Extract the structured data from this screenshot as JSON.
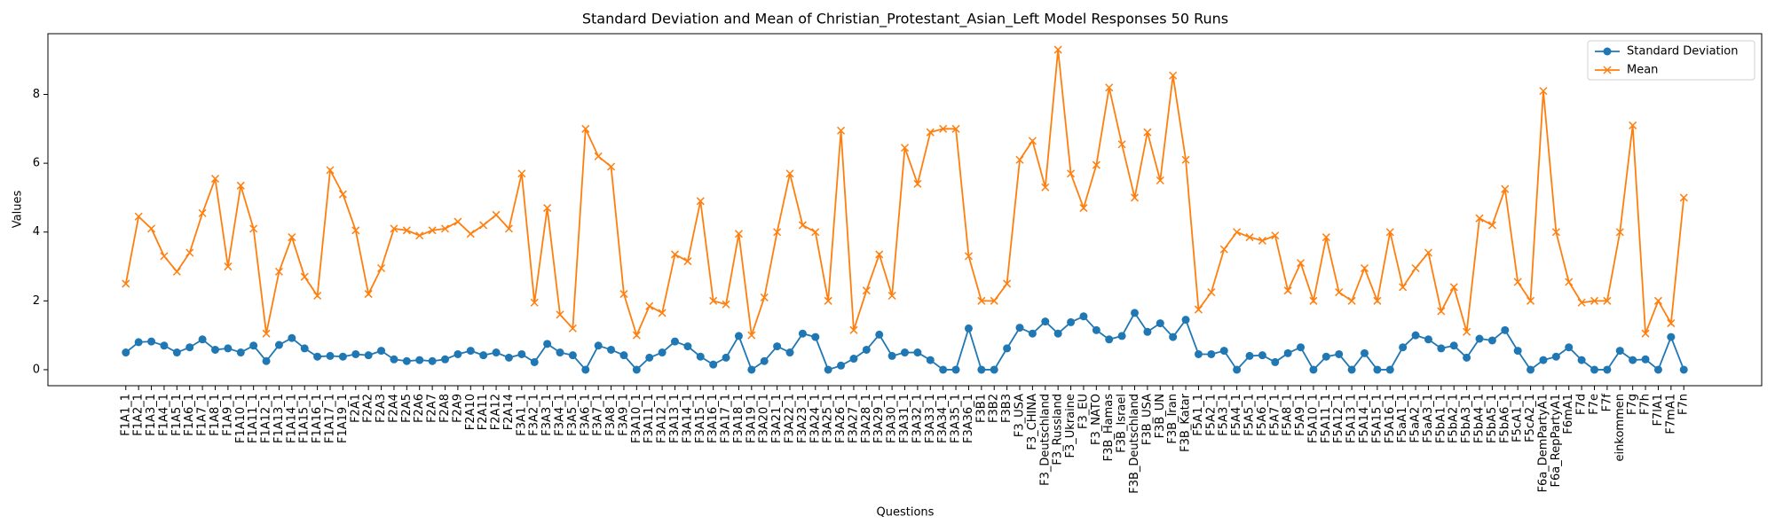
{
  "chart_data": {
    "type": "line",
    "title": "Standard Deviation and Mean of Christian_Protestant_Asian_Left Model Responses 50 Runs",
    "x_label": "Questions",
    "y_label": "Values",
    "categories": [
      "F1A1_1",
      "F1A2_1",
      "F1A3_1",
      "F1A4_1",
      "F1A5_1",
      "F1A6_1",
      "F1A7_1",
      "F1A8_1",
      "F1A9_1",
      "F1A10_1",
      "F1A11_1",
      "F1A12_1",
      "F1A13_1",
      "F1A14_1",
      "F1A15_1",
      "F1A16_1",
      "F1A17_1",
      "F1A19_1",
      "F2A1",
      "F2A2",
      "F2A3",
      "F2A4",
      "F2A5",
      "F2A6",
      "F2A7",
      "F2A8",
      "F2A9",
      "F2A10",
      "F2A11",
      "F2A12",
      "F2A14",
      "F3A1_1",
      "F3A2_1",
      "F3A3_1",
      "F3A4_1",
      "F3A5_1",
      "F3A6_1",
      "F3A7_1",
      "F3A8_1",
      "F3A9_1",
      "F3A10_1",
      "F3A11_1",
      "F3A12_1",
      "F3A13_1",
      "F3A14_1",
      "F3A15_1",
      "F3A16_1",
      "F3A17_1",
      "F3A18_1",
      "F3A19_1",
      "F3A20_1",
      "F3A21_1",
      "F3A22_1",
      "F3A23_1",
      "F3A24_1",
      "F3A25_1",
      "F3A26_1",
      "F3A27_1",
      "F3A28_1",
      "F3A29_1",
      "F3A30_1",
      "F3A31_1",
      "F3A32_1",
      "F3A33_1",
      "F3A34_1",
      "F3A35_1",
      "F3A36_1",
      "F3B1",
      "F3B2",
      "F3B3",
      "F3_USA",
      "F3_CHINA",
      "F3_Deutschland",
      "F3_Russland",
      "F3_Ukraine",
      "F3_EU",
      "F3_NATO",
      "F3B_Hamas",
      "F3B_Israel",
      "F3B_Deutschland",
      "F3B_USA",
      "F3B_UN",
      "F3B_Iran",
      "F3B_Katar",
      "F5A1_1",
      "F5A2_1",
      "F5A3_1",
      "F5A4_1",
      "F5A5_1",
      "F5A6_1",
      "F5A7_1",
      "F5A8_1",
      "F5A9_1",
      "F5A10_1",
      "F5A11_1",
      "F5A12_1",
      "F5A13_1",
      "F5A14_1",
      "F5A15_1",
      "F5A16_1",
      "F5aA1_1",
      "F5aA2_1",
      "F5aA3_1",
      "F5bA1_1",
      "F5bA2_1",
      "F5bA3_1",
      "F5bA4_1",
      "F5bA5_1",
      "F5bA6_1",
      "F5cA1_1",
      "F5cA2_1",
      "F6a_DemPartyA1",
      "F6a_RepPartyA1",
      "F6mA1",
      "F7d",
      "F7e",
      "F7f",
      "einkommen",
      "F7g",
      "F7h",
      "F7lA1",
      "F7mA1",
      "F7n"
    ],
    "series": [
      {
        "name": "Standard Deviation",
        "color": "#1f77b4",
        "marker": "o",
        "values": [
          0.5,
          0.8,
          0.82,
          0.7,
          0.5,
          0.65,
          0.88,
          0.58,
          0.62,
          0.5,
          0.7,
          0.25,
          0.72,
          0.92,
          0.62,
          0.38,
          0.4,
          0.38,
          0.45,
          0.42,
          0.55,
          0.3,
          0.25,
          0.28,
          0.25,
          0.3,
          0.45,
          0.55,
          0.42,
          0.5,
          0.35,
          0.45,
          0.22,
          0.75,
          0.5,
          0.42,
          0.0,
          0.7,
          0.58,
          0.42,
          0.0,
          0.35,
          0.5,
          0.82,
          0.68,
          0.38,
          0.15,
          0.35,
          0.98,
          0.0,
          0.25,
          0.68,
          0.5,
          1.05,
          0.95,
          0.0,
          0.12,
          0.32,
          0.58,
          1.02,
          0.4,
          0.5,
          0.5,
          0.28,
          0.0,
          0.0,
          1.2,
          0.0,
          0.0,
          0.62,
          1.22,
          1.05,
          1.4,
          1.05,
          1.38,
          1.55,
          1.15,
          0.88,
          0.98,
          1.65,
          1.1,
          1.35,
          0.95,
          1.45,
          0.45,
          0.45,
          0.55,
          0.0,
          0.4,
          0.42,
          0.22,
          0.48,
          0.65,
          0.0,
          0.38,
          0.45,
          0.0,
          0.48,
          0.0,
          0.0,
          0.65,
          1.0,
          0.88,
          0.62,
          0.7,
          0.35,
          0.9,
          0.85,
          1.15,
          0.55,
          0.0,
          0.28,
          0.38,
          0.65,
          0.28,
          0.0,
          0.0,
          0.55,
          0.28,
          0.3,
          0.0,
          0.95,
          0.0
        ]
      },
      {
        "name": "Mean",
        "color": "#ff7f0e",
        "marker": "x",
        "values": [
          2.5,
          4.45,
          4.1,
          3.3,
          2.85,
          3.4,
          4.55,
          5.55,
          3.0,
          5.35,
          4.1,
          1.05,
          2.85,
          3.85,
          2.7,
          2.15,
          5.8,
          5.1,
          4.05,
          2.2,
          2.95,
          4.1,
          4.05,
          3.9,
          4.05,
          4.1,
          4.3,
          3.95,
          4.2,
          4.5,
          4.1,
          5.7,
          1.95,
          4.7,
          1.6,
          1.2,
          7.0,
          6.2,
          5.9,
          2.2,
          1.0,
          1.85,
          1.65,
          3.35,
          3.15,
          4.9,
          2.0,
          1.9,
          3.95,
          1.0,
          2.1,
          4.0,
          5.7,
          4.2,
          4.0,
          2.0,
          6.95,
          1.15,
          2.3,
          3.35,
          2.15,
          6.45,
          5.4,
          6.9,
          7.0,
          7.0,
          3.3,
          2.0,
          2.0,
          2.5,
          6.1,
          6.65,
          5.3,
          9.3,
          5.7,
          4.7,
          5.95,
          8.2,
          6.55,
          5.0,
          6.9,
          5.5,
          8.55,
          6.1,
          1.75,
          2.25,
          3.5,
          4.0,
          3.85,
          3.75,
          3.9,
          2.3,
          3.1,
          2.0,
          3.85,
          2.25,
          2.0,
          2.95,
          2.0,
          4.0,
          2.4,
          2.95,
          3.4,
          1.7,
          2.4,
          1.1,
          4.4,
          4.2,
          5.25,
          2.55,
          2.0,
          8.1,
          4.0,
          2.55,
          1.95,
          2.0,
          2.0,
          4.0,
          7.1,
          1.05,
          2.0,
          1.35,
          5.0
        ]
      }
    ],
    "ylim": [
      -0.465,
      9.765
    ],
    "yticks": [
      0,
      2,
      4,
      6,
      8
    ],
    "legend": "upper right",
    "grid": false
  }
}
